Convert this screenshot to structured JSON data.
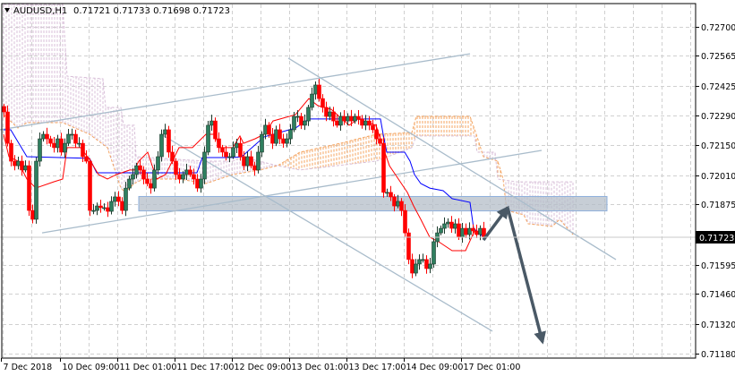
{
  "header": {
    "symbol": "AUDUSD,H1",
    "ohlc": "0.71721 0.71733 0.71698 0.71723",
    "menu_icon": "triangle-down-icon"
  },
  "chart_data": {
    "type": "candlestick",
    "title": "AUDUSD,H1",
    "ylim": [
      0.7111,
      0.7287
    ],
    "grid": true,
    "y_ticks": [
      "0.72700",
      "0.72565",
      "0.72425",
      "0.72290",
      "0.72150",
      "0.72010",
      "0.71875",
      "0.71595",
      "0.71460",
      "0.71320",
      "0.71180"
    ],
    "x_ticks": [
      "7 Dec 2018",
      "10 Dec 09:00",
      "11 Dec 01:00",
      "11 Dec 17:00",
      "12 Dec 09:00",
      "13 Dec 01:00",
      "13 Dec 17:00",
      "14 Dec 09:00",
      "17 Dec 01:00"
    ],
    "current_price": "0.71723",
    "first_open": 0.7233,
    "closes": [
      0.72305,
      0.72159,
      0.72076,
      0.72055,
      0.72076,
      0.72035,
      0.72055,
      0.71847,
      0.71806,
      0.72076,
      0.7218,
      0.72201,
      0.7218,
      0.72159,
      0.72139,
      0.7218,
      0.72118,
      0.72159,
      0.72201,
      0.72201,
      0.72159,
      0.72159,
      0.72097,
      0.72076,
      0.71847,
      0.71847,
      0.71868,
      0.7186,
      0.7186,
      0.71843,
      0.71889,
      0.7191,
      0.71889,
      0.71847,
      0.71951,
      0.71993,
      0.72014,
      0.72055,
      0.72035,
      0.71993,
      0.71972,
      0.71951,
      0.72035,
      0.72097,
      0.72201,
      0.72222,
      0.72118,
      0.72076,
      0.72014,
      0.71993,
      0.72014,
      0.72035,
      0.72014,
      0.71993,
      0.71951,
      0.71993,
      0.72118,
      0.72243,
      0.72263,
      0.7218,
      0.72139,
      0.72118,
      0.72097,
      0.72097,
      0.72139,
      0.72159,
      0.72097,
      0.72055,
      0.72097,
      0.72055,
      0.72035,
      0.72118,
      0.72201,
      0.72243,
      0.72201,
      0.72159,
      0.72222,
      0.7218,
      0.72159,
      0.7218,
      0.72222,
      0.72284,
      0.72284,
      0.72243,
      0.72263,
      0.72326,
      0.72388,
      0.7243,
      0.72367,
      0.72326,
      0.72284,
      0.72305,
      0.72263,
      0.72243,
      0.72284,
      0.72263,
      0.72284,
      0.72263,
      0.72284,
      0.72272,
      0.72243,
      0.72263,
      0.72243,
      0.72222,
      0.7218,
      0.72159,
      0.71931,
      0.71931,
      0.7191,
      0.71868,
      0.71889,
      0.71847,
      0.71743,
      0.71619,
      0.71556,
      0.71598,
      0.71619,
      0.71619,
      0.71577,
      0.71598,
      0.71702,
      0.71743,
      0.71764,
      0.71785,
      0.71793,
      0.71764,
      0.71785,
      0.71723,
      0.71764,
      0.71735,
      0.71764,
      0.71752,
      0.71735,
      0.71764,
      0.71723
    ],
    "kijun_sen": [
      [
        0,
        0.72222
      ],
      [
        2,
        0.72222
      ],
      [
        6.5,
        0.72097
      ],
      [
        24,
        0.72089
      ],
      [
        26,
        0.72022
      ],
      [
        54,
        0.72022
      ],
      [
        55.5,
        0.72093
      ],
      [
        64,
        0.72093
      ],
      [
        66.5,
        0.72097
      ],
      [
        72.75,
        0.72189
      ],
      [
        81.5,
        0.7223
      ],
      [
        85.25,
        0.72272
      ],
      [
        105.25,
        0.72272
      ],
      [
        106,
        0.72201
      ],
      [
        107,
        0.72118
      ],
      [
        112,
        0.72118
      ],
      [
        113.5,
        0.72076
      ],
      [
        114.75,
        0.72014
      ],
      [
        116.5,
        0.71972
      ],
      [
        119,
        0.71951
      ],
      [
        122.75,
        0.71939
      ],
      [
        125.25,
        0.71902
      ],
      [
        130.25,
        0.71885
      ],
      [
        131.25,
        0.71764
      ],
      [
        134,
        0.71723
      ]
    ],
    "tenkan_sen": [
      [
        0,
        0.72201
      ],
      [
        1.5,
        0.72097
      ],
      [
        4,
        0.72076
      ],
      [
        6.5,
        0.71993
      ],
      [
        9,
        0.71951
      ],
      [
        14,
        0.7198
      ],
      [
        16.5,
        0.71993
      ],
      [
        17.75,
        0.72139
      ],
      [
        21.5,
        0.72139
      ],
      [
        24,
        0.72084
      ],
      [
        26.5,
        0.72014
      ],
      [
        29,
        0.71993
      ],
      [
        31.5,
        0.72014
      ],
      [
        35.25,
        0.72035
      ],
      [
        36.5,
        0.72035
      ],
      [
        37.75,
        0.72076
      ],
      [
        40.25,
        0.72118
      ],
      [
        42.75,
        0.71993
      ],
      [
        45.25,
        0.72014
      ],
      [
        47.75,
        0.72097
      ],
      [
        49,
        0.72139
      ],
      [
        52.75,
        0.72139
      ],
      [
        56.5,
        0.72201
      ],
      [
        59,
        0.72201
      ],
      [
        60.25,
        0.72139
      ],
      [
        64,
        0.72139
      ],
      [
        66,
        0.72193
      ],
      [
        67,
        0.72159
      ],
      [
        70.25,
        0.7218
      ],
      [
        72.75,
        0.72201
      ],
      [
        75.25,
        0.72263
      ],
      [
        81.5,
        0.72292
      ],
      [
        85.25,
        0.72367
      ],
      [
        87.75,
        0.72334
      ],
      [
        91.5,
        0.72317
      ],
      [
        96.5,
        0.72243
      ],
      [
        99,
        0.72272
      ],
      [
        104,
        0.72243
      ],
      [
        106,
        0.72139
      ],
      [
        107.75,
        0.72055
      ],
      [
        110.25,
        0.71993
      ],
      [
        112.75,
        0.71931
      ],
      [
        114.5,
        0.71868
      ],
      [
        116.5,
        0.71806
      ],
      [
        119,
        0.71723
      ],
      [
        121.5,
        0.71702
      ],
      [
        125.25,
        0.7166
      ],
      [
        129,
        0.7166
      ],
      [
        131.5,
        0.71752
      ],
      [
        134,
        0.71735
      ]
    ],
    "senkou_span_a": [
      [
        0,
        0.72292
      ],
      [
        4,
        0.7223
      ],
      [
        6.5,
        0.72255
      ],
      [
        16.5,
        0.72255
      ],
      [
        24,
        0.72201
      ],
      [
        29,
        0.72139
      ],
      [
        32.75,
        0.71951
      ],
      [
        34,
        0.71931
      ],
      [
        36.5,
        0.71972
      ],
      [
        39,
        0.71993
      ],
      [
        49,
        0.71993
      ],
      [
        56.5,
        0.71972
      ],
      [
        64,
        0.72014
      ],
      [
        71.5,
        0.72035
      ],
      [
        76.5,
        0.72055
      ],
      [
        82.75,
        0.72118
      ],
      [
        94,
        0.72159
      ],
      [
        104,
        0.72201
      ],
      [
        114,
        0.72209
      ],
      [
        115.25,
        0.72284
      ],
      [
        130.25,
        0.72284
      ],
      [
        132,
        0.72201
      ],
      [
        134,
        0.72097
      ],
      [
        138,
        0.72076
      ],
      [
        139.5,
        0.71993
      ],
      [
        140.5,
        0.71847
      ],
      [
        145.25,
        0.71827
      ],
      [
        146.5,
        0.71785
      ],
      [
        153.25,
        0.71773
      ],
      [
        155.25,
        0.71806
      ],
      [
        159,
        0.71735
      ]
    ],
    "senkou_span_b": [
      [
        0,
        0.72804
      ],
      [
        16.5,
        0.72804
      ],
      [
        17.75,
        0.72471
      ],
      [
        27.75,
        0.72459
      ],
      [
        28.5,
        0.72326
      ],
      [
        32.75,
        0.72326
      ],
      [
        33.5,
        0.72243
      ],
      [
        36.5,
        0.72243
      ],
      [
        37,
        0.72097
      ],
      [
        56.5,
        0.72076
      ],
      [
        64,
        0.72076
      ],
      [
        66.5,
        0.72097
      ],
      [
        76.5,
        0.72055
      ],
      [
        82.75,
        0.72035
      ],
      [
        104,
        0.72076
      ],
      [
        114,
        0.72139
      ],
      [
        115.25,
        0.72193
      ],
      [
        131.5,
        0.72193
      ],
      [
        132.25,
        0.72118
      ],
      [
        137.25,
        0.72118
      ],
      [
        138,
        0.71993
      ],
      [
        143.25,
        0.7198
      ],
      [
        159,
        0.7198
      ]
    ],
    "zone": {
      "from_index": 37.75,
      "to_index": 168.5,
      "upper": 0.71912,
      "lower": 0.71845
    },
    "trendlines": [
      {
        "name": "channel-up-upper",
        "from": [
          -1,
          0.72222
        ],
        "to": [
          130.25,
          0.72575
        ]
      },
      {
        "name": "channel-up-lower",
        "from": [
          10.75,
          0.71743
        ],
        "to": [
          150.25,
          0.72126
        ]
      },
      {
        "name": "channel-down-upper",
        "from": [
          79.5,
          0.72555
        ],
        "to": [
          171,
          0.71619
        ]
      },
      {
        "name": "channel-down-lower",
        "from": [
          44,
          0.72201
        ],
        "to": [
          136.5,
          0.71286
        ]
      }
    ],
    "forecast_arrows": [
      {
        "from": [
          134,
          0.7171
        ],
        "to": [
          140.75,
          0.7186
        ]
      },
      {
        "from": [
          140.75,
          0.7186
        ],
        "to": [
          150.5,
          0.71236
        ]
      }
    ],
    "colors": {
      "bull": "#2f7f5f",
      "bear": "#ff0000",
      "kijun": "#0000ff",
      "tenkan": "#ff0000",
      "span_a": "#f4a460",
      "span_b": "#d8bfd8",
      "zone_fill": "#b4bec8",
      "zone_border": "#8fb0dc",
      "trendline": "#a9bccb",
      "arrow": "#4a5966",
      "grid": "#d0d0d0"
    }
  }
}
